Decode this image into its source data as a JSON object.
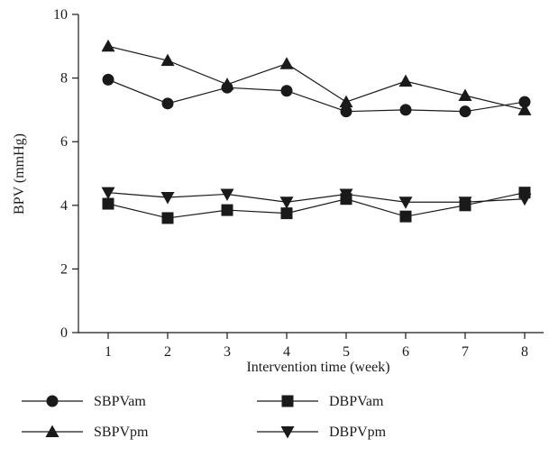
{
  "chart_data": {
    "type": "line",
    "title": "",
    "xlabel": "Intervention time (week)",
    "ylabel": "BPV (mmHg)",
    "x": [
      1,
      2,
      3,
      4,
      5,
      6,
      7,
      8
    ],
    "xticks": [
      "1",
      "2",
      "3",
      "4",
      "5",
      "6",
      "7",
      "8"
    ],
    "ylim": [
      0,
      10
    ],
    "yticks": [
      "0",
      "2",
      "4",
      "6",
      "8",
      "10"
    ],
    "grid": false,
    "legend_position": "bottom",
    "series": [
      {
        "name": "SBPVam",
        "marker": "circle",
        "values": [
          7.95,
          7.2,
          7.7,
          7.6,
          6.95,
          7.0,
          6.95,
          7.25
        ]
      },
      {
        "name": "DBPVam",
        "marker": "square",
        "values": [
          4.05,
          3.6,
          3.85,
          3.75,
          4.2,
          3.65,
          4.0,
          4.4
        ]
      },
      {
        "name": "SBPVpm",
        "marker": "triangle-up",
        "values": [
          9.0,
          8.55,
          7.8,
          8.45,
          7.25,
          7.9,
          7.45,
          7.0
        ]
      },
      {
        "name": "DBPVpm",
        "marker": "triangle-down",
        "values": [
          4.4,
          4.25,
          4.35,
          4.1,
          4.35,
          4.1,
          4.1,
          4.2
        ]
      }
    ],
    "colors": {
      "line": "#1a1a1a",
      "marker": "#1a1a1a"
    }
  }
}
